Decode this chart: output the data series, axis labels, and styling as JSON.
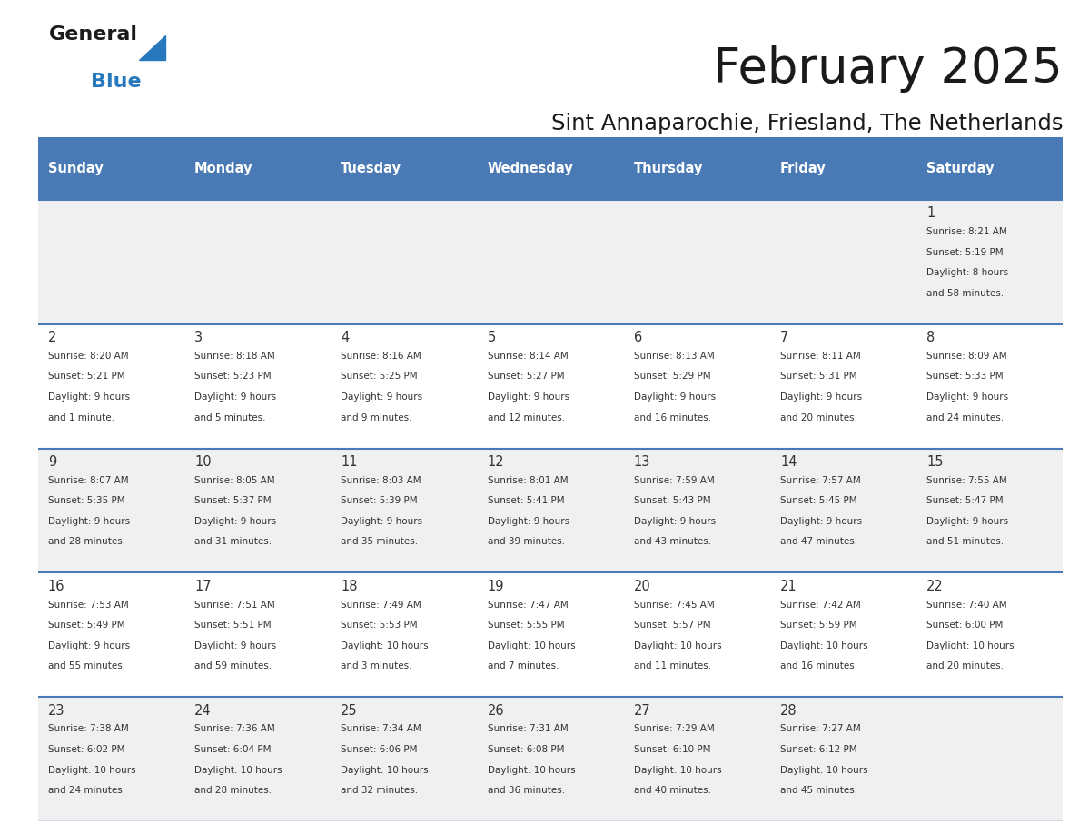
{
  "title": "February 2025",
  "subtitle": "Sint Annaparochie, Friesland, The Netherlands",
  "days_of_week": [
    "Sunday",
    "Monday",
    "Tuesday",
    "Wednesday",
    "Thursday",
    "Friday",
    "Saturday"
  ],
  "header_bg": "#4a7ab5",
  "header_fg": "#FFFFFF",
  "row_bg_light": "#f0f0f0",
  "row_bg_white": "#FFFFFF",
  "cell_border_color": "#4a7ab5",
  "title_color": "#1a1a1a",
  "subtitle_color": "#1a1a1a",
  "text_color": "#333333",
  "logo_general_color": "#1a1a1a",
  "logo_blue_color": "#2878BE",
  "calendar_data": [
    [
      null,
      null,
      null,
      null,
      null,
      null,
      1
    ],
    [
      2,
      3,
      4,
      5,
      6,
      7,
      8
    ],
    [
      9,
      10,
      11,
      12,
      13,
      14,
      15
    ],
    [
      16,
      17,
      18,
      19,
      20,
      21,
      22
    ],
    [
      23,
      24,
      25,
      26,
      27,
      28,
      null
    ]
  ],
  "sunrise_data": {
    "1": [
      "Sunrise: 8:21 AM",
      "Sunset: 5:19 PM",
      "Daylight: 8 hours",
      "and 58 minutes."
    ],
    "2": [
      "Sunrise: 8:20 AM",
      "Sunset: 5:21 PM",
      "Daylight: 9 hours",
      "and 1 minute."
    ],
    "3": [
      "Sunrise: 8:18 AM",
      "Sunset: 5:23 PM",
      "Daylight: 9 hours",
      "and 5 minutes."
    ],
    "4": [
      "Sunrise: 8:16 AM",
      "Sunset: 5:25 PM",
      "Daylight: 9 hours",
      "and 9 minutes."
    ],
    "5": [
      "Sunrise: 8:14 AM",
      "Sunset: 5:27 PM",
      "Daylight: 9 hours",
      "and 12 minutes."
    ],
    "6": [
      "Sunrise: 8:13 AM",
      "Sunset: 5:29 PM",
      "Daylight: 9 hours",
      "and 16 minutes."
    ],
    "7": [
      "Sunrise: 8:11 AM",
      "Sunset: 5:31 PM",
      "Daylight: 9 hours",
      "and 20 minutes."
    ],
    "8": [
      "Sunrise: 8:09 AM",
      "Sunset: 5:33 PM",
      "Daylight: 9 hours",
      "and 24 minutes."
    ],
    "9": [
      "Sunrise: 8:07 AM",
      "Sunset: 5:35 PM",
      "Daylight: 9 hours",
      "and 28 minutes."
    ],
    "10": [
      "Sunrise: 8:05 AM",
      "Sunset: 5:37 PM",
      "Daylight: 9 hours",
      "and 31 minutes."
    ],
    "11": [
      "Sunrise: 8:03 AM",
      "Sunset: 5:39 PM",
      "Daylight: 9 hours",
      "and 35 minutes."
    ],
    "12": [
      "Sunrise: 8:01 AM",
      "Sunset: 5:41 PM",
      "Daylight: 9 hours",
      "and 39 minutes."
    ],
    "13": [
      "Sunrise: 7:59 AM",
      "Sunset: 5:43 PM",
      "Daylight: 9 hours",
      "and 43 minutes."
    ],
    "14": [
      "Sunrise: 7:57 AM",
      "Sunset: 5:45 PM",
      "Daylight: 9 hours",
      "and 47 minutes."
    ],
    "15": [
      "Sunrise: 7:55 AM",
      "Sunset: 5:47 PM",
      "Daylight: 9 hours",
      "and 51 minutes."
    ],
    "16": [
      "Sunrise: 7:53 AM",
      "Sunset: 5:49 PM",
      "Daylight: 9 hours",
      "and 55 minutes."
    ],
    "17": [
      "Sunrise: 7:51 AM",
      "Sunset: 5:51 PM",
      "Daylight: 9 hours",
      "and 59 minutes."
    ],
    "18": [
      "Sunrise: 7:49 AM",
      "Sunset: 5:53 PM",
      "Daylight: 10 hours",
      "and 3 minutes."
    ],
    "19": [
      "Sunrise: 7:47 AM",
      "Sunset: 5:55 PM",
      "Daylight: 10 hours",
      "and 7 minutes."
    ],
    "20": [
      "Sunrise: 7:45 AM",
      "Sunset: 5:57 PM",
      "Daylight: 10 hours",
      "and 11 minutes."
    ],
    "21": [
      "Sunrise: 7:42 AM",
      "Sunset: 5:59 PM",
      "Daylight: 10 hours",
      "and 16 minutes."
    ],
    "22": [
      "Sunrise: 7:40 AM",
      "Sunset: 6:00 PM",
      "Daylight: 10 hours",
      "and 20 minutes."
    ],
    "23": [
      "Sunrise: 7:38 AM",
      "Sunset: 6:02 PM",
      "Daylight: 10 hours",
      "and 24 minutes."
    ],
    "24": [
      "Sunrise: 7:36 AM",
      "Sunset: 6:04 PM",
      "Daylight: 10 hours",
      "and 28 minutes."
    ],
    "25": [
      "Sunrise: 7:34 AM",
      "Sunset: 6:06 PM",
      "Daylight: 10 hours",
      "and 32 minutes."
    ],
    "26": [
      "Sunrise: 7:31 AM",
      "Sunset: 6:08 PM",
      "Daylight: 10 hours",
      "and 36 minutes."
    ],
    "27": [
      "Sunrise: 7:29 AM",
      "Sunset: 6:10 PM",
      "Daylight: 10 hours",
      "and 40 minutes."
    ],
    "28": [
      "Sunrise: 7:27 AM",
      "Sunset: 6:12 PM",
      "Daylight: 10 hours",
      "and 45 minutes."
    ]
  }
}
